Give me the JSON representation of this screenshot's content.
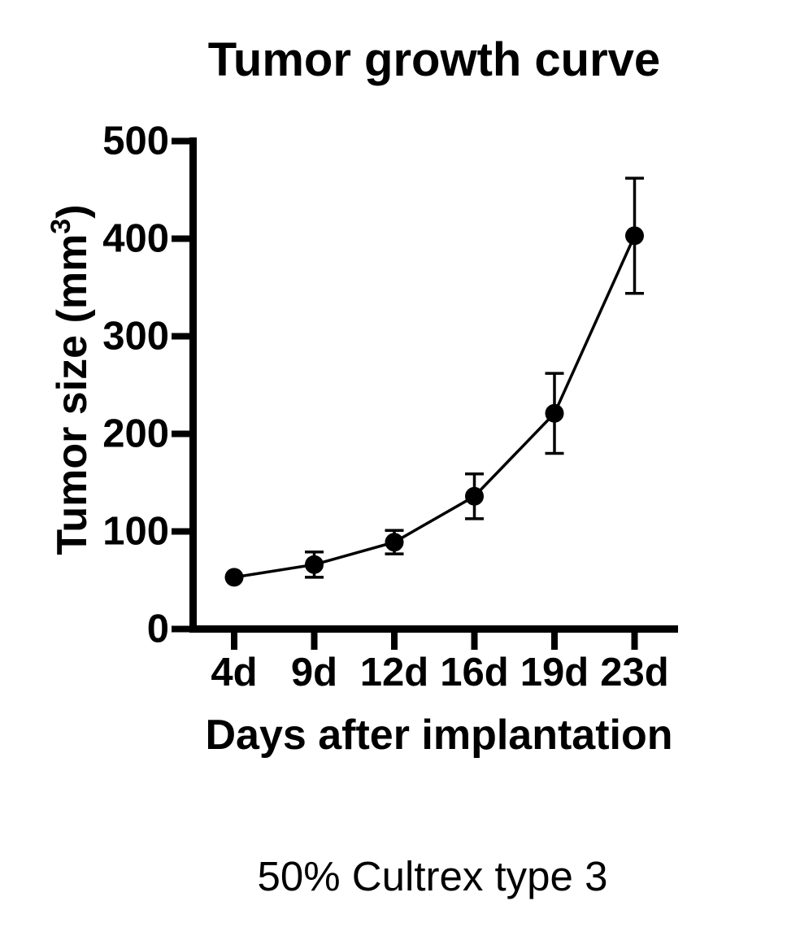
{
  "figure": {
    "title": "Tumor growth curve",
    "y_axis_label_prefix": "Tumor size (mm",
    "y_axis_label_superscript": "3",
    "y_axis_label_suffix": ")",
    "x_axis_label": "Days after implantation",
    "caption": "50% Cultrex type 3"
  },
  "chart_data": {
    "type": "line",
    "title": "Tumor growth curve",
    "xlabel": "Days after implantation",
    "ylabel": "Tumor size (mm³)",
    "caption": "50% Cultrex type 3",
    "categories": [
      "4d",
      "9d",
      "12d",
      "16d",
      "19d",
      "23d"
    ],
    "series": [
      {
        "name": "Tumor size",
        "values": [
          53,
          66,
          89,
          136,
          221,
          403
        ],
        "errors": [
          0,
          13,
          12,
          23,
          41,
          59
        ]
      }
    ],
    "yticks": [
      0,
      100,
      200,
      300,
      400,
      500
    ],
    "ylim": [
      0,
      500
    ],
    "grid": false,
    "legend_position": "none",
    "marker": "filled-circle",
    "line_color": "#000000",
    "marker_color": "#000000",
    "background_color": "#ffffff"
  }
}
